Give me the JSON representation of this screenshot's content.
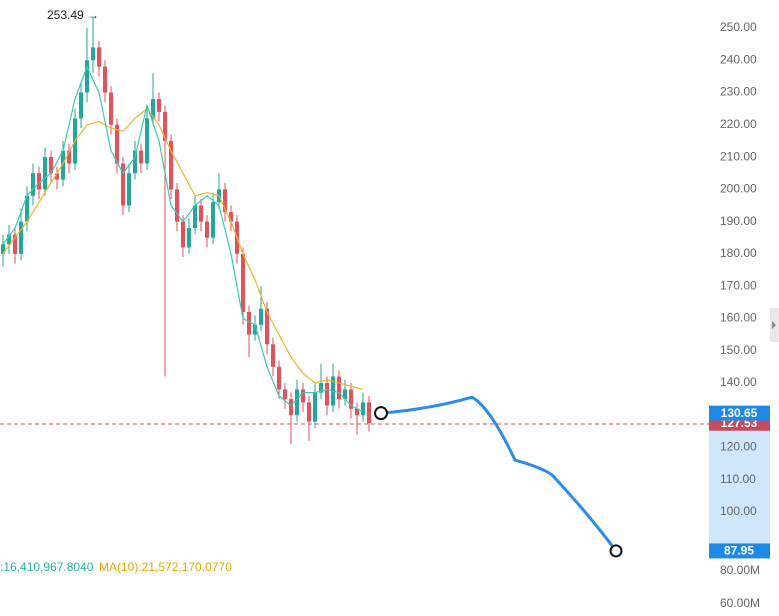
{
  "peak_label": "253.49 →",
  "price_axis": [
    {
      "value": 250,
      "label": "250.00"
    },
    {
      "value": 240,
      "label": "240.00"
    },
    {
      "value": 230,
      "label": "230.00"
    },
    {
      "value": 220,
      "label": "220.00"
    },
    {
      "value": 210,
      "label": "210.00"
    },
    {
      "value": 200,
      "label": "200.00"
    },
    {
      "value": 190,
      "label": "190.00"
    },
    {
      "value": 180,
      "label": "180.00"
    },
    {
      "value": 170,
      "label": "170.00"
    },
    {
      "value": 160,
      "label": "160.00"
    },
    {
      "value": 150,
      "label": "150.00"
    },
    {
      "value": 140,
      "label": "140.00"
    },
    {
      "value": 120,
      "label": "120.00"
    },
    {
      "value": 110,
      "label": "110.00"
    },
    {
      "value": 100,
      "label": "100.00"
    }
  ],
  "volume_axis": [
    "80.00M",
    "60.00M"
  ],
  "last_price": {
    "value": 127.53,
    "label": "127.53"
  },
  "projection_start": {
    "value": 130.65,
    "label": "130.65"
  },
  "projection_end": {
    "value": 87.95,
    "label": "87.95"
  },
  "projection_path": [
    130.65,
    135.6,
    116.1,
    113,
    87.95
  ],
  "ma_texts": [
    ":16,410,967.8040",
    "MA(10):21,572,170.0770"
  ],
  "candles": [
    [
      180,
      186,
      176,
      183
    ],
    [
      183,
      189,
      180,
      186
    ],
    [
      186,
      188,
      177,
      180
    ],
    [
      180,
      194,
      178,
      190
    ],
    [
      190,
      201,
      187,
      198
    ],
    [
      198,
      208,
      195,
      205
    ],
    [
      205,
      207,
      197,
      200
    ],
    [
      200,
      213,
      198,
      210
    ],
    [
      210,
      212,
      202,
      205
    ],
    [
      205,
      207,
      200,
      203
    ],
    [
      203,
      215,
      201,
      212
    ],
    [
      212,
      214,
      205,
      208
    ],
    [
      208,
      225,
      206,
      222
    ],
    [
      222,
      233,
      219,
      230
    ],
    [
      230,
      250,
      227,
      240
    ],
    [
      240,
      253.49,
      236,
      244
    ],
    [
      244,
      246,
      235,
      238
    ],
    [
      238,
      240,
      227,
      230
    ],
    [
      230,
      232,
      217,
      220
    ],
    [
      220,
      222,
      205,
      208
    ],
    [
      208,
      210,
      192,
      195
    ],
    [
      195,
      208,
      193,
      205
    ],
    [
      205,
      215,
      203,
      212
    ],
    [
      212,
      214,
      205,
      208
    ],
    [
      208,
      225,
      206,
      222
    ],
    [
      222,
      236,
      220,
      228
    ],
    [
      228,
      230,
      221,
      224
    ],
    [
      224,
      226,
      142,
      215
    ],
    [
      215,
      217,
      197,
      200
    ],
    [
      200,
      202,
      187,
      190
    ],
    [
      190,
      192,
      179,
      182
    ],
    [
      182,
      191,
      180,
      188
    ],
    [
      188,
      198,
      186,
      195
    ],
    [
      195,
      197,
      187,
      190
    ],
    [
      190,
      192,
      182,
      185
    ],
    [
      185,
      199,
      183,
      196
    ],
    [
      196,
      205,
      194,
      200
    ],
    [
      200,
      202,
      190,
      193
    ],
    [
      193,
      195,
      187,
      190
    ],
    [
      190,
      192,
      177,
      180
    ],
    [
      180,
      182,
      158,
      162
    ],
    [
      162,
      164,
      148,
      155
    ],
    [
      155,
      161,
      153,
      158
    ],
    [
      158,
      170,
      156,
      163
    ],
    [
      163,
      165,
      149,
      152
    ],
    [
      152,
      154,
      142,
      145
    ],
    [
      145,
      147,
      135,
      138
    ],
    [
      138,
      140,
      132,
      135
    ],
    [
      135,
      137,
      121,
      130
    ],
    [
      130,
      141,
      128,
      138
    ],
    [
      138,
      140,
      131,
      134
    ],
    [
      134,
      136,
      122,
      128
    ],
    [
      128,
      140,
      126,
      137
    ],
    [
      137,
      146,
      135,
      140
    ],
    [
      140,
      142,
      130,
      133
    ],
    [
      133,
      146,
      131,
      142
    ],
    [
      142,
      144,
      132,
      135
    ],
    [
      135,
      141,
      133,
      138
    ],
    [
      138,
      140,
      129,
      132
    ],
    [
      132,
      134,
      124,
      130
    ],
    [
      130,
      137,
      128,
      134
    ],
    [
      134,
      136,
      125,
      127.53
    ]
  ],
  "ma_lines": [
    {
      "color": "#f0b429",
      "values": [
        180,
        185,
        190,
        196,
        202,
        208,
        215,
        220,
        221,
        219,
        218,
        222,
        225,
        220,
        212,
        205,
        198,
        199,
        198,
        190,
        180,
        172,
        162,
        155,
        148,
        143,
        140,
        141,
        140,
        139,
        138
      ]
    },
    {
      "color": "#3cc8b4",
      "values": [
        183,
        188,
        198,
        202,
        205,
        212,
        228,
        238,
        230,
        212,
        205,
        210,
        226,
        215,
        195,
        190,
        195,
        198,
        195,
        180,
        160,
        158,
        145,
        136,
        133,
        137,
        137,
        138,
        137,
        133,
        131
      ]
    }
  ]
}
